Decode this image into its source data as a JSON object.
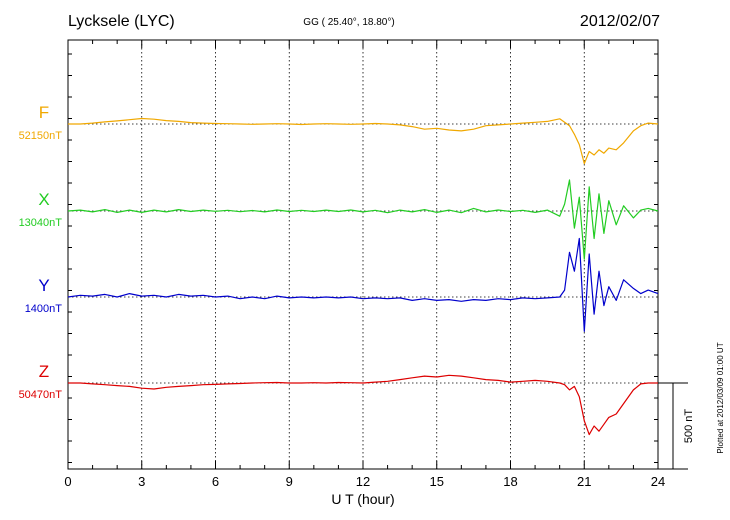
{
  "header": {
    "station": "Lycksele (LYC)",
    "coords": "GG ( 25.40°,  18.80°)",
    "date": "2012/02/07"
  },
  "footer": {
    "plotted": "Plotted at 2012/03/09 01:00 UT"
  },
  "chart_data": {
    "type": "line",
    "xlabel": "U T (hour)",
    "xlim": [
      0,
      24
    ],
    "x_ticks": [
      "0",
      "3",
      "6",
      "9",
      "12",
      "15",
      "18",
      "21",
      "24"
    ],
    "grid": true,
    "scale_bar": {
      "label": "500 nT",
      "value_nT": 500
    },
    "x": [
      0,
      0.5,
      1,
      1.5,
      2,
      2.5,
      3,
      3.5,
      4,
      4.5,
      5,
      5.5,
      6,
      6.5,
      7,
      7.5,
      8,
      8.5,
      9,
      9.5,
      10,
      10.5,
      11,
      11.5,
      12,
      12.5,
      13,
      13.5,
      14,
      14.5,
      15,
      15.5,
      16,
      16.5,
      17,
      17.5,
      18,
      18.5,
      19,
      19.5,
      20,
      20.2,
      20.4,
      20.6,
      20.8,
      21,
      21.2,
      21.4,
      21.6,
      21.8,
      22,
      22.3,
      22.6,
      23,
      23.3,
      23.6,
      24
    ],
    "series": [
      {
        "name": "F",
        "baseline": "52150nT",
        "color": "#f0a800",
        "values": [
          0,
          0,
          5,
          12,
          18,
          25,
          32,
          28,
          20,
          15,
          8,
          5,
          3,
          2,
          0,
          -2,
          0,
          2,
          0,
          -3,
          0,
          2,
          0,
          -2,
          0,
          3,
          0,
          -5,
          -15,
          -30,
          -25,
          -35,
          -40,
          -30,
          -10,
          -5,
          0,
          5,
          10,
          15,
          30,
          10,
          -10,
          -60,
          -120,
          -230,
          -160,
          -180,
          -150,
          -170,
          -140,
          -150,
          -110,
          -40,
          -10,
          5,
          0
        ]
      },
      {
        "name": "X",
        "baseline": "13040nT",
        "color": "#22cc22",
        "values": [
          0,
          5,
          -5,
          8,
          -8,
          5,
          -8,
          5,
          -5,
          8,
          -3,
          5,
          -2,
          4,
          -4,
          3,
          -5,
          6,
          -3,
          4,
          -3,
          5,
          -3,
          6,
          -5,
          4,
          -10,
          5,
          -5,
          8,
          -8,
          5,
          -10,
          15,
          -5,
          6,
          -3,
          4,
          -8,
          5,
          -30,
          40,
          180,
          -100,
          80,
          -280,
          140,
          -160,
          100,
          -130,
          60,
          -80,
          30,
          -40,
          5,
          15,
          0
        ]
      },
      {
        "name": "Y",
        "baseline": "1400nT",
        "color": "#0000cc",
        "values": [
          0,
          10,
          5,
          15,
          0,
          20,
          5,
          10,
          0,
          15,
          5,
          10,
          0,
          5,
          -10,
          0,
          -10,
          5,
          -5,
          0,
          -5,
          0,
          -5,
          0,
          -10,
          -5,
          -10,
          -5,
          -20,
          -10,
          -20,
          -15,
          -25,
          -15,
          -20,
          -10,
          -15,
          -5,
          -10,
          -5,
          0,
          40,
          260,
          150,
          340,
          -200,
          250,
          -100,
          150,
          -50,
          60,
          -20,
          100,
          50,
          20,
          40,
          20
        ]
      },
      {
        "name": "Z",
        "baseline": "50470nT",
        "color": "#dd0000",
        "values": [
          0,
          0,
          -5,
          -10,
          -15,
          -20,
          -30,
          -35,
          -25,
          -20,
          -15,
          -10,
          -8,
          -5,
          -3,
          0,
          2,
          3,
          0,
          0,
          2,
          0,
          3,
          2,
          0,
          5,
          10,
          20,
          30,
          40,
          35,
          45,
          40,
          30,
          20,
          15,
          5,
          10,
          15,
          10,
          0,
          -10,
          -40,
          -20,
          -80,
          -220,
          -300,
          -250,
          -280,
          -240,
          -200,
          -180,
          -120,
          -40,
          -5,
          0,
          0
        ]
      }
    ]
  }
}
